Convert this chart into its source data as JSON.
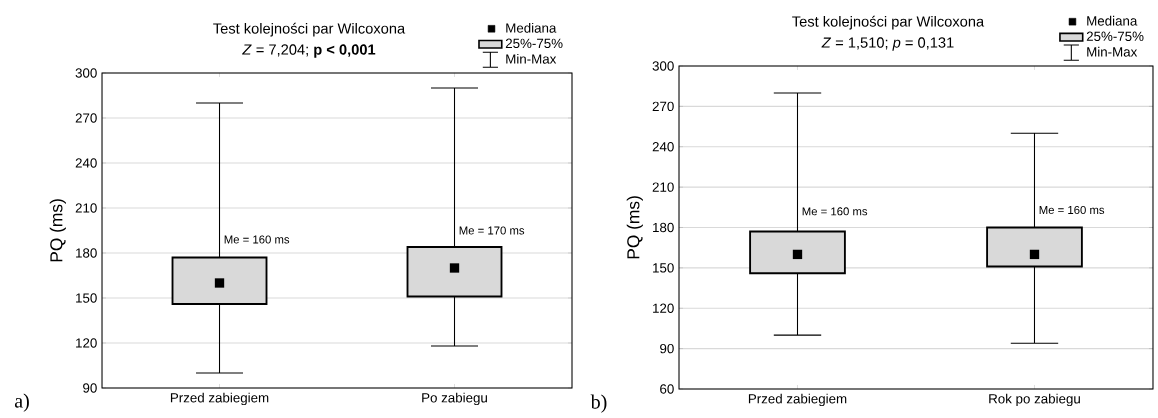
{
  "chart_data": [
    {
      "type": "box",
      "title": "Test kolejności par Wilcoxona",
      "subtitle": "*Z* = 7,204; **p < 0,001**",
      "ylabel": "PQ (ms)",
      "categories": [
        "Przed zabiegiem",
        "Po zabiegu"
      ],
      "ylim": [
        90,
        300
      ],
      "yticks": [
        90,
        120,
        150,
        180,
        210,
        240,
        270,
        300
      ],
      "grid": "y",
      "legend": "top right",
      "marker": "square",
      "annotations": [
        "Mediana",
        "Min-Max",
        "a)",
        {
          "text": "Me = 160 ms",
          "x": "Przed zabiegiem",
          "y": 189
        },
        {
          "text": "Me = 170 ms",
          "x": "Po zabiegu",
          "y": 195
        }
      ],
      "series": [
        {
          "type": "box",
          "name": "25%-75%",
          "color": "#d9d9d9",
          "boxes": [
            {
              "low": 100,
              "q1": 146,
              "median": 160,
              "q3": 177,
              "high": 280
            },
            {
              "low": 118,
              "q1": 151,
              "median": 170,
              "q3": 184,
              "high": 290
            }
          ]
        }
      ]
    },
    {
      "type": "box",
      "title": "Test kolejności par Wilcoxona",
      "subtitle": "*Z* = 1,510; *p* = 0,131",
      "ylabel": "PQ (ms)",
      "categories": [
        "Przed zabiegiem",
        "Rok po zabiegu"
      ],
      "ylim": [
        60,
        300
      ],
      "yticks": [
        60,
        90,
        120,
        150,
        180,
        210,
        240,
        270,
        300
      ],
      "grid": "y",
      "legend": "top right",
      "marker": "square",
      "annotations": [
        "Mediana",
        "Min-Max",
        "b)",
        {
          "text": "Me = 160 ms",
          "x": "Przed zabiegiem",
          "y": 192
        },
        {
          "text": "Me = 160 ms",
          "x": "Rok po zabiegu",
          "y": 193
        }
      ],
      "series": [
        {
          "type": "box",
          "name": "25%-75%",
          "color": "#d9d9d9",
          "boxes": [
            {
              "low": 100,
              "q1": 146,
              "median": 160,
              "q3": 177,
              "high": 280
            },
            {
              "low": 94,
              "q1": 151,
              "median": 160,
              "q3": 180,
              "high": 250
            }
          ]
        }
      ]
    }
  ]
}
